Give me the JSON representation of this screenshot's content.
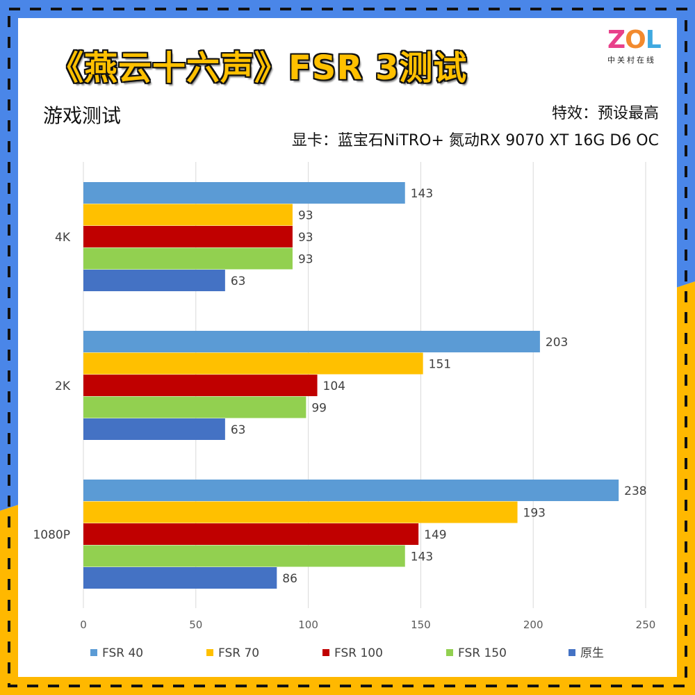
{
  "title": "《燕云十六声》FSR 3测试",
  "subtitle": "游戏测试",
  "settings": "特效：预设最高",
  "gpu": "显卡：蓝宝石NiTRO+ 氮动RX 9070 XT 16G D6 OC",
  "logo": {
    "text": "ZOL",
    "sub": "中关村在线"
  },
  "colors": {
    "border_blue": "#4A86E8",
    "border_yellow": "#FFB800",
    "dash": "#111111"
  },
  "chart_data": {
    "type": "bar",
    "orientation": "horizontal",
    "categories": [
      "4K",
      "2K",
      "1080P"
    ],
    "series": [
      {
        "name": "FSR 40",
        "color": "#5B9BD5",
        "values": [
          143,
          203,
          238
        ]
      },
      {
        "name": "FSR 70",
        "color": "#FFC000",
        "values": [
          93,
          151,
          193
        ]
      },
      {
        "name": "FSR 100",
        "color": "#C00000",
        "values": [
          93,
          104,
          149
        ]
      },
      {
        "name": "FSR 150",
        "color": "#92D050",
        "values": [
          93,
          99,
          143
        ]
      },
      {
        "name": "原生",
        "color": "#4472C4",
        "values": [
          63,
          63,
          86
        ]
      }
    ],
    "xlim": [
      0,
      250
    ],
    "xticks": [
      0,
      50,
      100,
      150,
      200,
      250
    ],
    "grid": true,
    "legend": "bottom"
  }
}
